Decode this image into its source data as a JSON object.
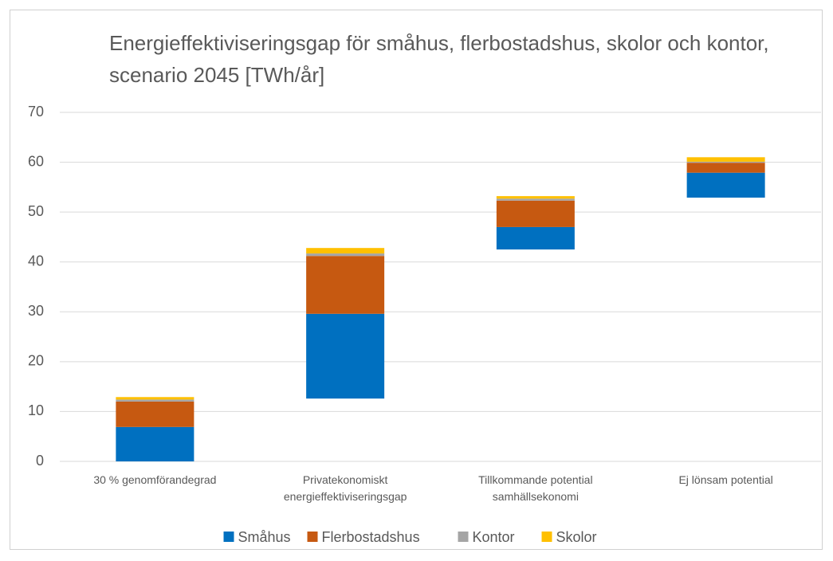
{
  "chart_data": {
    "type": "floating-stacked-bar",
    "title": "Energieffektiviseringsgap för småhus, flerbostadshus, skolor och kontor, scenario 2045 [TWh/år]",
    "categories": [
      [
        "30 % genomförandegrad"
      ],
      [
        "Privatekonomiskt",
        "energieffektiviseringsgap"
      ],
      [
        "Tillkommande potential",
        "samhällsekonomi"
      ],
      [
        "Ej lönsam potential"
      ]
    ],
    "base": [
      0,
      12.6,
      42.5,
      52.9
    ],
    "series": [
      {
        "name": "Småhus",
        "color": "#0070c0",
        "values": [
          6.9,
          17.0,
          4.5,
          5.0
        ]
      },
      {
        "name": "Flerbostadshus",
        "color": "#c65911",
        "values": [
          5.1,
          11.6,
          5.3,
          2.0
        ]
      },
      {
        "name": "Kontor",
        "color": "#a5a5a5",
        "values": [
          0.4,
          0.5,
          0.4,
          0.2
        ]
      },
      {
        "name": "Skolor",
        "color": "#ffc000",
        "values": [
          0.5,
          1.1,
          0.5,
          0.9
        ]
      }
    ],
    "ylim": [
      0,
      70
    ],
    "yticks": [
      0,
      10,
      20,
      30,
      40,
      50,
      60,
      70
    ],
    "grid": true,
    "legend": "bottom"
  }
}
